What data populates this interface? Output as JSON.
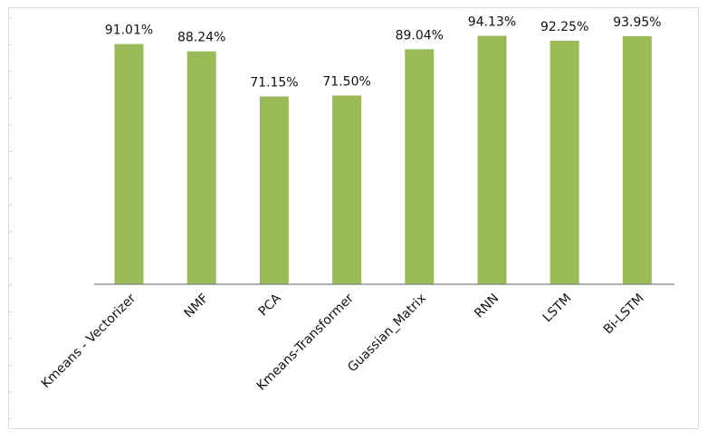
{
  "chart_data": {
    "type": "bar",
    "title": "",
    "xlabel": "",
    "ylabel": "",
    "categories": [
      "Kmeans - Vectorizer",
      "NMF",
      "PCA",
      "Kmeans-Transformer",
      "Guassian_Matrix",
      "RNN",
      "LSTM",
      "Bi-LSTM"
    ],
    "values": [
      91.01,
      88.24,
      71.15,
      71.5,
      89.04,
      94.13,
      92.25,
      93.95
    ],
    "data_labels": [
      "91.01%",
      "88.24%",
      "71.15%",
      "71.50%",
      "89.04%",
      "94.13%",
      "92.25%",
      "93.95%"
    ],
    "ylim": [
      0,
      100
    ],
    "bar_color": "#9bbb59",
    "grid": false,
    "legend": "none"
  }
}
